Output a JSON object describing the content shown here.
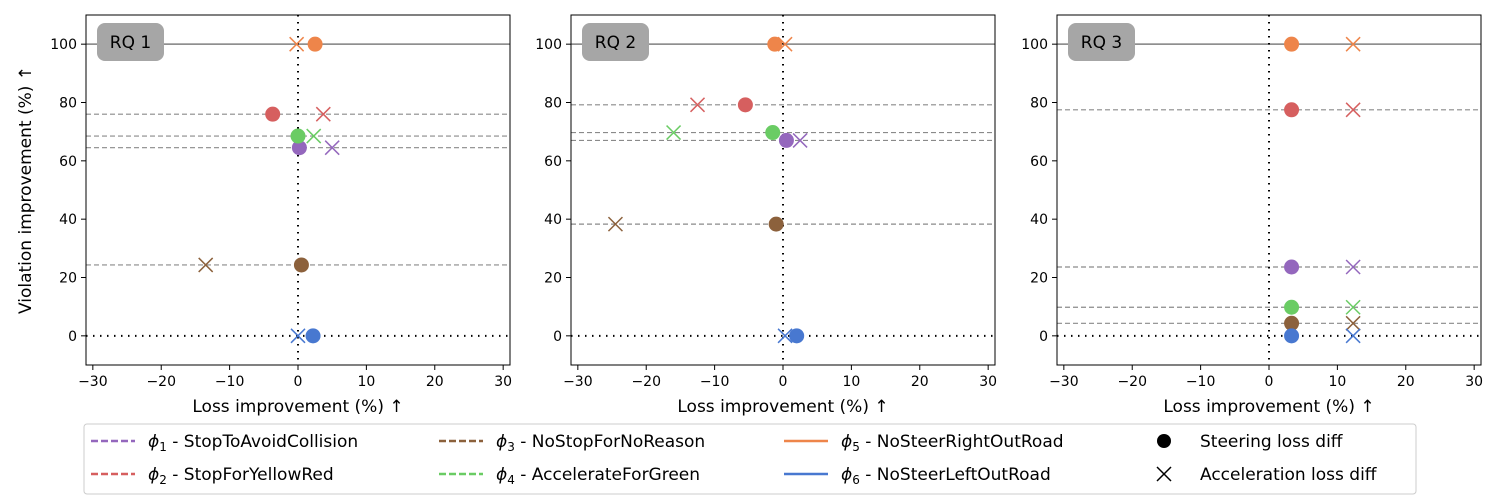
{
  "chart_data": [
    {
      "type": "scatter",
      "panel_label": "RQ 1",
      "xlabel": "Loss improvement (%)  ↑",
      "ylabel": "Violation improvement (%)  ↑",
      "xlim": [
        -31,
        31
      ],
      "ylim": [
        -10,
        110
      ],
      "xticks": [
        -30,
        -20,
        -10,
        0,
        10,
        20,
        30
      ],
      "yticks": [
        0,
        20,
        40,
        60,
        80,
        100
      ],
      "series": [
        {
          "key": "phi1",
          "steering": {
            "x": 0.2,
            "y": 64.5
          },
          "acceleration": {
            "x": 5.0,
            "y": 64.5
          }
        },
        {
          "key": "phi2",
          "steering": {
            "x": -3.7,
            "y": 76.0
          },
          "acceleration": {
            "x": 3.7,
            "y": 76.0
          }
        },
        {
          "key": "phi3",
          "steering": {
            "x": 0.5,
            "y": 24.3
          },
          "acceleration": {
            "x": -13.5,
            "y": 24.3
          }
        },
        {
          "key": "phi4",
          "steering": {
            "x": 0.0,
            "y": 68.5
          },
          "acceleration": {
            "x": 2.3,
            "y": 68.5
          }
        },
        {
          "key": "phi5",
          "steering": {
            "x": 2.5,
            "y": 100.0
          },
          "acceleration": {
            "x": -0.2,
            "y": 100.0
          }
        },
        {
          "key": "phi6",
          "steering": {
            "x": 2.2,
            "y": 0.0
          },
          "acceleration": {
            "x": 0.0,
            "y": 0.0
          }
        }
      ]
    },
    {
      "type": "scatter",
      "panel_label": "RQ 2",
      "xlabel": "Loss improvement (%)  ↑",
      "ylabel": "",
      "xlim": [
        -31,
        31
      ],
      "ylim": [
        -10,
        110
      ],
      "xticks": [
        -30,
        -20,
        -10,
        0,
        10,
        20,
        30
      ],
      "yticks": [
        0,
        20,
        40,
        60,
        80,
        100
      ],
      "series": [
        {
          "key": "phi1",
          "steering": {
            "x": 0.5,
            "y": 67.0
          },
          "acceleration": {
            "x": 2.5,
            "y": 67.0
          }
        },
        {
          "key": "phi2",
          "steering": {
            "x": -5.5,
            "y": 79.2
          },
          "acceleration": {
            "x": -12.5,
            "y": 79.2
          }
        },
        {
          "key": "phi3",
          "steering": {
            "x": -1.0,
            "y": 38.3
          },
          "acceleration": {
            "x": -24.5,
            "y": 38.3
          }
        },
        {
          "key": "phi4",
          "steering": {
            "x": -1.5,
            "y": 69.7
          },
          "acceleration": {
            "x": -16.0,
            "y": 69.7
          }
        },
        {
          "key": "phi5",
          "steering": {
            "x": -1.2,
            "y": 100.0
          },
          "acceleration": {
            "x": 0.3,
            "y": 100.0
          }
        },
        {
          "key": "phi6",
          "steering": {
            "x": 2.0,
            "y": 0.0
          },
          "acceleration": {
            "x": 0.3,
            "y": 0.0
          }
        }
      ]
    },
    {
      "type": "scatter",
      "panel_label": "RQ 3",
      "xlabel": "Loss improvement (%)  ↑",
      "ylabel": "",
      "xlim": [
        -31,
        31
      ],
      "ylim": [
        -10,
        110
      ],
      "xticks": [
        -30,
        -20,
        -10,
        0,
        10,
        20,
        30
      ],
      "yticks": [
        0,
        20,
        40,
        60,
        80,
        100
      ],
      "series": [
        {
          "key": "phi1",
          "steering": {
            "x": 3.3,
            "y": 23.6
          },
          "acceleration": {
            "x": 12.3,
            "y": 23.6
          }
        },
        {
          "key": "phi2",
          "steering": {
            "x": 3.3,
            "y": 77.5
          },
          "acceleration": {
            "x": 12.3,
            "y": 77.5
          }
        },
        {
          "key": "phi3",
          "steering": {
            "x": 3.3,
            "y": 4.3
          },
          "acceleration": {
            "x": 12.3,
            "y": 4.3
          }
        },
        {
          "key": "phi4",
          "steering": {
            "x": 3.3,
            "y": 9.8
          },
          "acceleration": {
            "x": 12.3,
            "y": 9.8
          }
        },
        {
          "key": "phi5",
          "steering": {
            "x": 3.3,
            "y": 100.0
          },
          "acceleration": {
            "x": 12.3,
            "y": 100.0
          }
        },
        {
          "key": "phi6",
          "steering": {
            "x": 3.3,
            "y": 0.0
          },
          "acceleration": {
            "x": 12.3,
            "y": 0.0
          }
        }
      ]
    }
  ],
  "legend": {
    "placement": "bottom",
    "entries": [
      {
        "key": "phi1",
        "sub": "1",
        "label": " - StopToAvoidCollision",
        "color": "#9467bd",
        "style": "dashed"
      },
      {
        "key": "phi2",
        "sub": "2",
        "label": " - StopForYellowRed",
        "color": "#d65f5f",
        "style": "dashed"
      },
      {
        "key": "phi3",
        "sub": "3",
        "label": " - NoStopForNoReason",
        "color": "#8c613c",
        "style": "dashed"
      },
      {
        "key": "phi4",
        "sub": "4",
        "label": " - AccelerateForGreen",
        "color": "#6acc64",
        "style": "dashed"
      },
      {
        "key": "phi5",
        "sub": "5",
        "label": " - NoSteerRightOutRoad",
        "color": "#ee854a",
        "style": "solid"
      },
      {
        "key": "phi6",
        "sub": "6",
        "label": " - NoSteerLeftOutRoad",
        "color": "#4878d0",
        "style": "solid"
      },
      {
        "key": "steering",
        "label": "Steering loss diff",
        "marker": "circle"
      },
      {
        "key": "acceleration",
        "label": "Acceleration loss diff",
        "marker": "x"
      }
    ]
  },
  "colors": {
    "phi1": "#9467bd",
    "phi2": "#d65f5f",
    "phi3": "#8c613c",
    "phi4": "#6acc64",
    "phi5": "#ee854a",
    "phi6": "#4878d0",
    "reference_line": "#8a8a8a",
    "top_line": "#7f7f7f",
    "panel_label_bg": "#a6a6a6"
  }
}
